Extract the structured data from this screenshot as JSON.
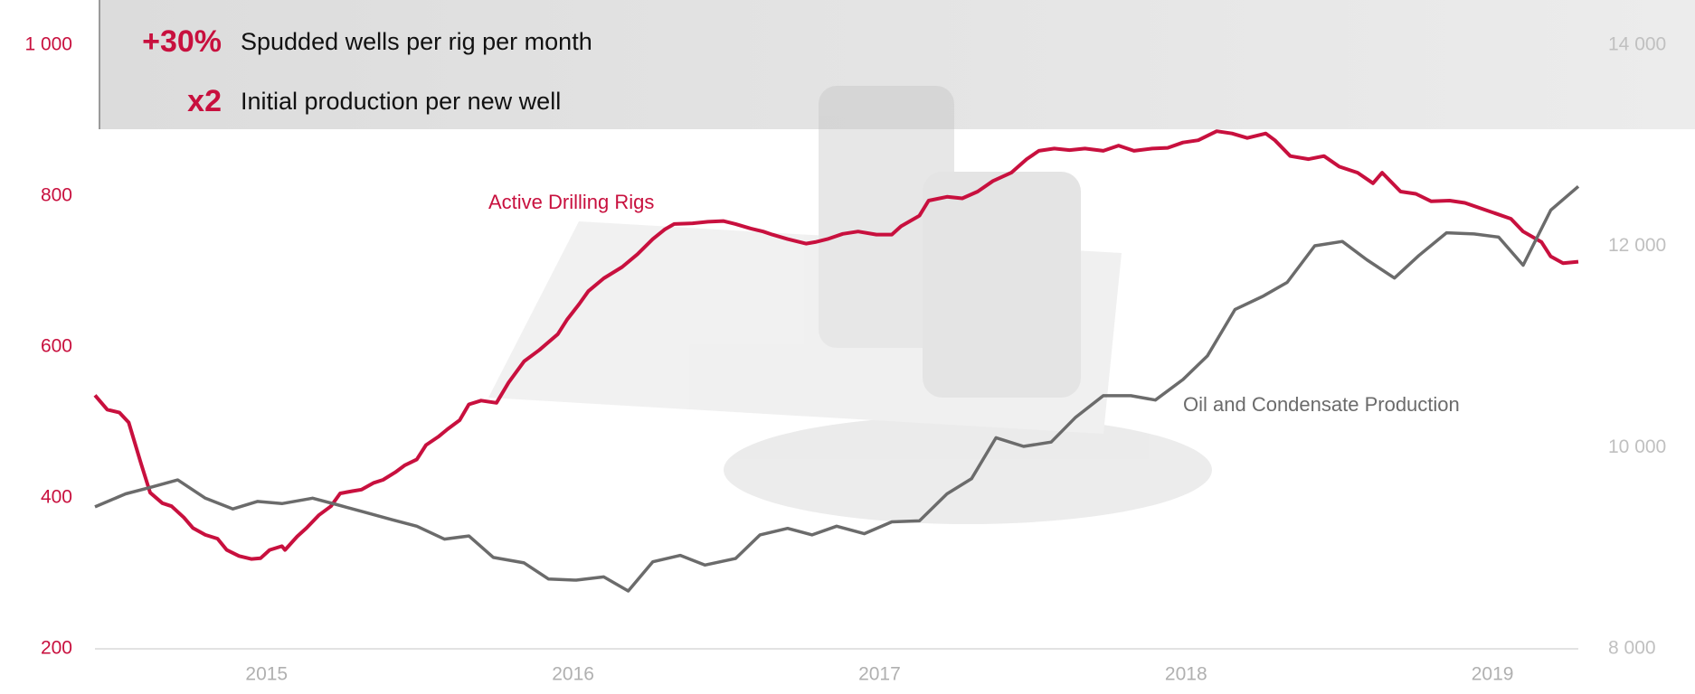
{
  "chart_data": {
    "type": "line",
    "annotations": [
      {
        "value": "+30%",
        "text": "Spudded wells per rig per month"
      },
      {
        "value": "x2",
        "text": "Initial production per new well"
      }
    ],
    "xlim": [
      2014.44,
      2019.28
    ],
    "xticks": [
      2015,
      2016,
      2017,
      2018,
      2019
    ],
    "ylim": [
      200,
      1000
    ],
    "yticks": [
      200,
      400,
      600,
      800,
      {
        "value": 1000,
        "label": "1 000"
      }
    ],
    "y2lim": [
      8000,
      14000
    ],
    "y2ticks": [
      {
        "value": 8000,
        "label": "8 000"
      },
      {
        "value": 10000,
        "label": "10 000"
      },
      {
        "value": 12000,
        "label": "12 000"
      },
      {
        "value": 14000,
        "label": "14 000"
      }
    ],
    "series": [
      {
        "name": "Active Drilling Rigs",
        "color": "#c8103e",
        "axis": "y",
        "x": [
          2014.44,
          2014.48,
          2014.52,
          2014.55,
          2014.59,
          2014.62,
          2014.66,
          2014.69,
          2014.73,
          2014.76,
          2014.8,
          2014.84,
          2014.87,
          2014.91,
          2014.95,
          2014.98,
          2015.01,
          2015.05,
          2015.06,
          2015.1,
          2015.13,
          2015.17,
          2015.21,
          2015.24,
          2015.28,
          2015.31,
          2015.35,
          2015.38,
          2015.42,
          2015.45,
          2015.49,
          2015.52,
          2015.56,
          2015.59,
          2015.63,
          2015.66,
          2015.7,
          2015.75,
          2015.79,
          2015.84,
          2015.89,
          2015.95,
          2015.98,
          2016.02,
          2016.05,
          2016.1,
          2016.16,
          2016.21,
          2016.26,
          2016.3,
          2016.33,
          2016.39,
          2016.44,
          2016.49,
          2016.53,
          2016.58,
          2016.62,
          2016.65,
          2016.7,
          2016.76,
          2016.79,
          2016.83,
          2016.88,
          2016.93,
          2016.99,
          2017.04,
          2017.07,
          2017.13,
          2017.16,
          2017.22,
          2017.27,
          2017.32,
          2017.37,
          2017.43,
          2017.48,
          2017.52,
          2017.57,
          2017.62,
          2017.67,
          2017.73,
          2017.78,
          2017.83,
          2017.89,
          2017.94,
          2017.99,
          2018.04,
          2018.1,
          2018.15,
          2018.2,
          2018.26,
          2018.29,
          2018.34,
          2018.4,
          2018.45,
          2018.5,
          2018.56,
          2018.61,
          2018.64,
          2018.7,
          2018.75,
          2018.8,
          2018.86,
          2018.91,
          2018.96,
          2019.01,
          2019.06,
          2019.1,
          2019.16,
          2019.19,
          2019.23,
          2019.28
        ],
        "values": [
          536,
          517,
          513,
          500,
          446,
          407,
          393,
          389,
          374,
          360,
          351,
          346,
          331,
          323,
          319,
          320,
          331,
          336,
          331,
          349,
          360,
          377,
          389,
          406,
          409,
          411,
          420,
          424,
          434,
          443,
          451,
          470,
          481,
          491,
          503,
          524,
          529,
          526,
          553,
          581,
          596,
          617,
          636,
          657,
          674,
          691,
          706,
          723,
          743,
          756,
          763,
          764,
          766,
          767,
          763,
          757,
          753,
          749,
          743,
          737,
          739,
          743,
          750,
          753,
          749,
          749,
          760,
          774,
          794,
          799,
          797,
          806,
          820,
          831,
          849,
          860,
          863,
          861,
          863,
          860,
          867,
          860,
          863,
          864,
          871,
          874,
          886,
          883,
          877,
          883,
          874,
          853,
          849,
          853,
          839,
          831,
          817,
          831,
          806,
          803,
          793,
          794,
          791,
          784,
          777,
          770,
          753,
          739,
          720,
          711,
          713
        ]
      },
      {
        "name": "Oil and Condensate Production",
        "color": "#6b6b6b",
        "axis": "y2",
        "x": [
          2014.44,
          2014.54,
          2014.62,
          2014.71,
          2014.8,
          2014.89,
          2014.97,
          2015.05,
          2015.15,
          2015.23,
          2015.32,
          2015.41,
          2015.49,
          2015.58,
          2015.66,
          2015.74,
          2015.84,
          2015.92,
          2016.01,
          2016.1,
          2016.18,
          2016.26,
          2016.35,
          2016.43,
          2016.53,
          2016.61,
          2016.7,
          2016.78,
          2016.86,
          2016.95,
          2017.04,
          2017.13,
          2017.22,
          2017.3,
          2017.38,
          2017.47,
          2017.56,
          2017.64,
          2017.73,
          2017.82,
          2017.9,
          2017.99,
          2018.07,
          2018.16,
          2018.25,
          2018.33,
          2018.42,
          2018.51,
          2018.59,
          2018.68,
          2018.76,
          2018.85,
          2018.94,
          2019.02,
          2019.1,
          2019.19,
          2019.28
        ],
        "values": [
          9411,
          9540,
          9604,
          9679,
          9497,
          9390,
          9465,
          9443,
          9497,
          9433,
          9358,
          9283,
          9219,
          9090,
          9122,
          8908,
          8854,
          8693,
          8683,
          8715,
          8575,
          8865,
          8929,
          8833,
          8897,
          9133,
          9197,
          9133,
          9219,
          9144,
          9262,
          9272,
          9540,
          9690,
          10098,
          10012,
          10055,
          10302,
          10516,
          10516,
          10473,
          10677,
          10913,
          11374,
          11503,
          11642,
          12006,
          12049,
          11867,
          11685,
          11910,
          12135,
          12124,
          12092,
          11813,
          12360,
          12596
        ]
      }
    ]
  }
}
